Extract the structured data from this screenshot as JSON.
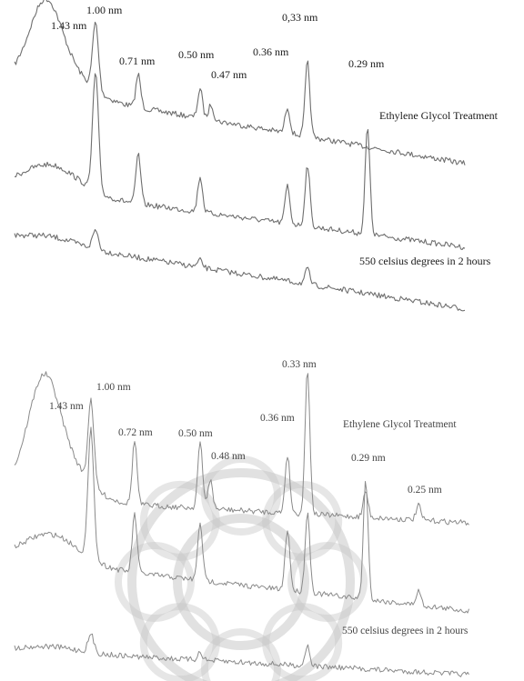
{
  "chart_data": [
    {
      "type": "line",
      "title": "",
      "xlabel": "",
      "ylabel": "",
      "grid": false,
      "legend": "none",
      "x_unit": "nm",
      "peak_labels": [
        "1.43 nm",
        "1.00 nm",
        "0.71 nm",
        "0.50 nm",
        "0.47 nm",
        "0.36 nm",
        "0,33 nm",
        "0.29 nm"
      ],
      "peak_d_nm": [
        1.43,
        1.0,
        0.71,
        0.5,
        0.47,
        0.36,
        0.33,
        0.29
      ],
      "series": [
        {
          "annotation": "",
          "color": "#777777",
          "peaks_d_nm": [
            1.43,
            1.0,
            0.71,
            0.5,
            0.47,
            0.36,
            0.33
          ],
          "relative_heights": [
            0.62,
            0.78,
            0.38,
            0.34,
            0.18,
            0.3,
            0.86
          ]
        },
        {
          "annotation": "Ethylene Glycol   Treatment",
          "color": "#777777",
          "peaks_d_nm": [
            1.0,
            0.71,
            0.5,
            0.36,
            0.33,
            0.29
          ],
          "relative_heights": [
            1.0,
            0.42,
            0.3,
            0.32,
            0.52,
            0.9
          ]
        },
        {
          "annotation": "550 celsius degrees in 2 hours",
          "color": "#777777",
          "peaks_d_nm": [
            1.0,
            0.5,
            0.33
          ],
          "relative_heights": [
            0.38,
            0.14,
            0.3
          ]
        }
      ]
    },
    {
      "type": "line",
      "title": "",
      "xlabel": "",
      "ylabel": "",
      "grid": false,
      "legend": "none",
      "x_unit": "nm",
      "peak_labels": [
        "1.43 nm",
        "1.00 nm",
        "0.72 nm",
        "0.50 nm",
        "0.48 nm",
        "0.36 nm",
        "0.33 nm",
        "0.29 nm",
        "0.25 nm"
      ],
      "peak_d_nm": [
        1.43,
        1.0,
        0.72,
        0.5,
        0.48,
        0.36,
        0.33,
        0.29,
        0.25
      ],
      "series": [
        {
          "annotation": "Ethylene Glycol Treatment",
          "color": "#8a8a8a",
          "peaks_d_nm": [
            1.43,
            1.0,
            0.72,
            0.5,
            0.48,
            0.36,
            0.33,
            0.29,
            0.25
          ],
          "relative_heights": [
            0.5,
            0.58,
            0.44,
            0.45,
            0.2,
            0.4,
            1.0,
            0.18,
            0.1
          ]
        },
        {
          "annotation": "",
          "color": "#8a8a8a",
          "peaks_d_nm": [
            1.0,
            0.72,
            0.5,
            0.36,
            0.33,
            0.29,
            0.25
          ],
          "relative_heights": [
            0.88,
            0.4,
            0.4,
            0.42,
            0.55,
            0.82,
            0.1
          ]
        },
        {
          "annotation": "550 celsius degrees in 2 hours",
          "color": "#8a8a8a",
          "peaks_d_nm": [
            1.0,
            0.5,
            0.33
          ],
          "relative_heights": [
            0.26,
            0.12,
            0.3
          ]
        }
      ]
    }
  ],
  "watermark": {
    "name": "ornamental-rosette-watermark",
    "color": "#c8c8c8"
  }
}
